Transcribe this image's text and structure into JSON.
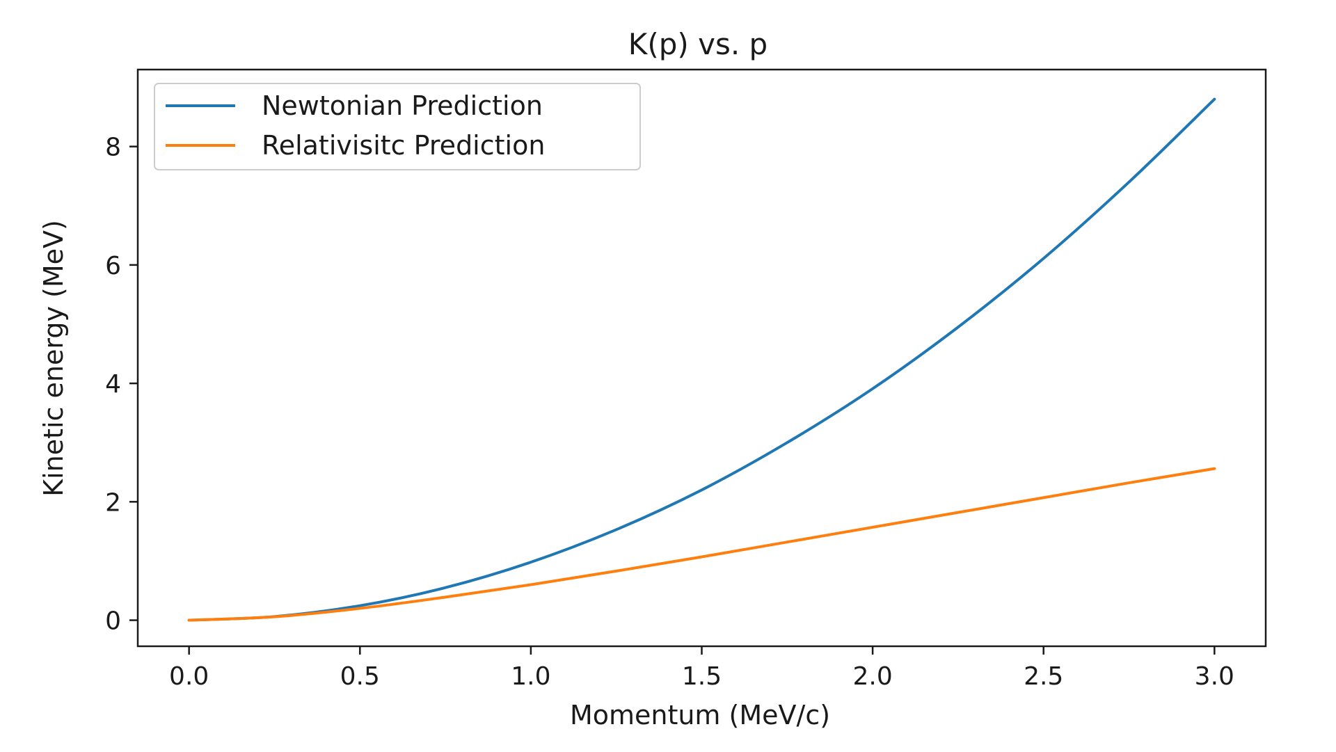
{
  "chart_data": {
    "type": "line",
    "title": "K(p) vs. p",
    "xlabel": "Momentum (MeV/c)",
    "ylabel": "Kinetic energy (MeV)",
    "xlim": [
      -0.15,
      3.15
    ],
    "ylim": [
      -0.44,
      9.3
    ],
    "xticks": [
      0.0,
      0.5,
      1.0,
      1.5,
      2.0,
      2.5,
      3.0
    ],
    "xtick_labels": [
      "0.0",
      "0.5",
      "1.0",
      "1.5",
      "2.0",
      "2.5",
      "3.0"
    ],
    "yticks": [
      0,
      2,
      4,
      6,
      8
    ],
    "ytick_labels": [
      "0",
      "2",
      "4",
      "6",
      "8"
    ],
    "grid": false,
    "legend_position": "upper-left",
    "series": [
      {
        "name": "Newtonian Prediction",
        "color": "#1f77b4",
        "x": [
          0.0,
          0.25,
          0.5,
          0.75,
          1.0,
          1.25,
          1.5,
          1.75,
          2.0,
          2.25,
          2.5,
          2.75,
          3.0
        ],
        "y": [
          0.0,
          0.061,
          0.245,
          0.55,
          0.98,
          1.53,
          2.2,
          3.0,
          3.91,
          4.95,
          6.11,
          7.4,
          8.8
        ]
      },
      {
        "name": "Relativisitc Prediction",
        "color": "#ff7f0e",
        "x": [
          0.0,
          0.25,
          0.5,
          0.75,
          1.0,
          1.25,
          1.5,
          1.75,
          2.0,
          2.25,
          2.5,
          2.75,
          3.0
        ],
        "y": [
          0.0,
          0.058,
          0.2,
          0.39,
          0.6,
          0.83,
          1.07,
          1.32,
          1.57,
          1.82,
          2.07,
          2.32,
          2.56
        ]
      }
    ]
  }
}
